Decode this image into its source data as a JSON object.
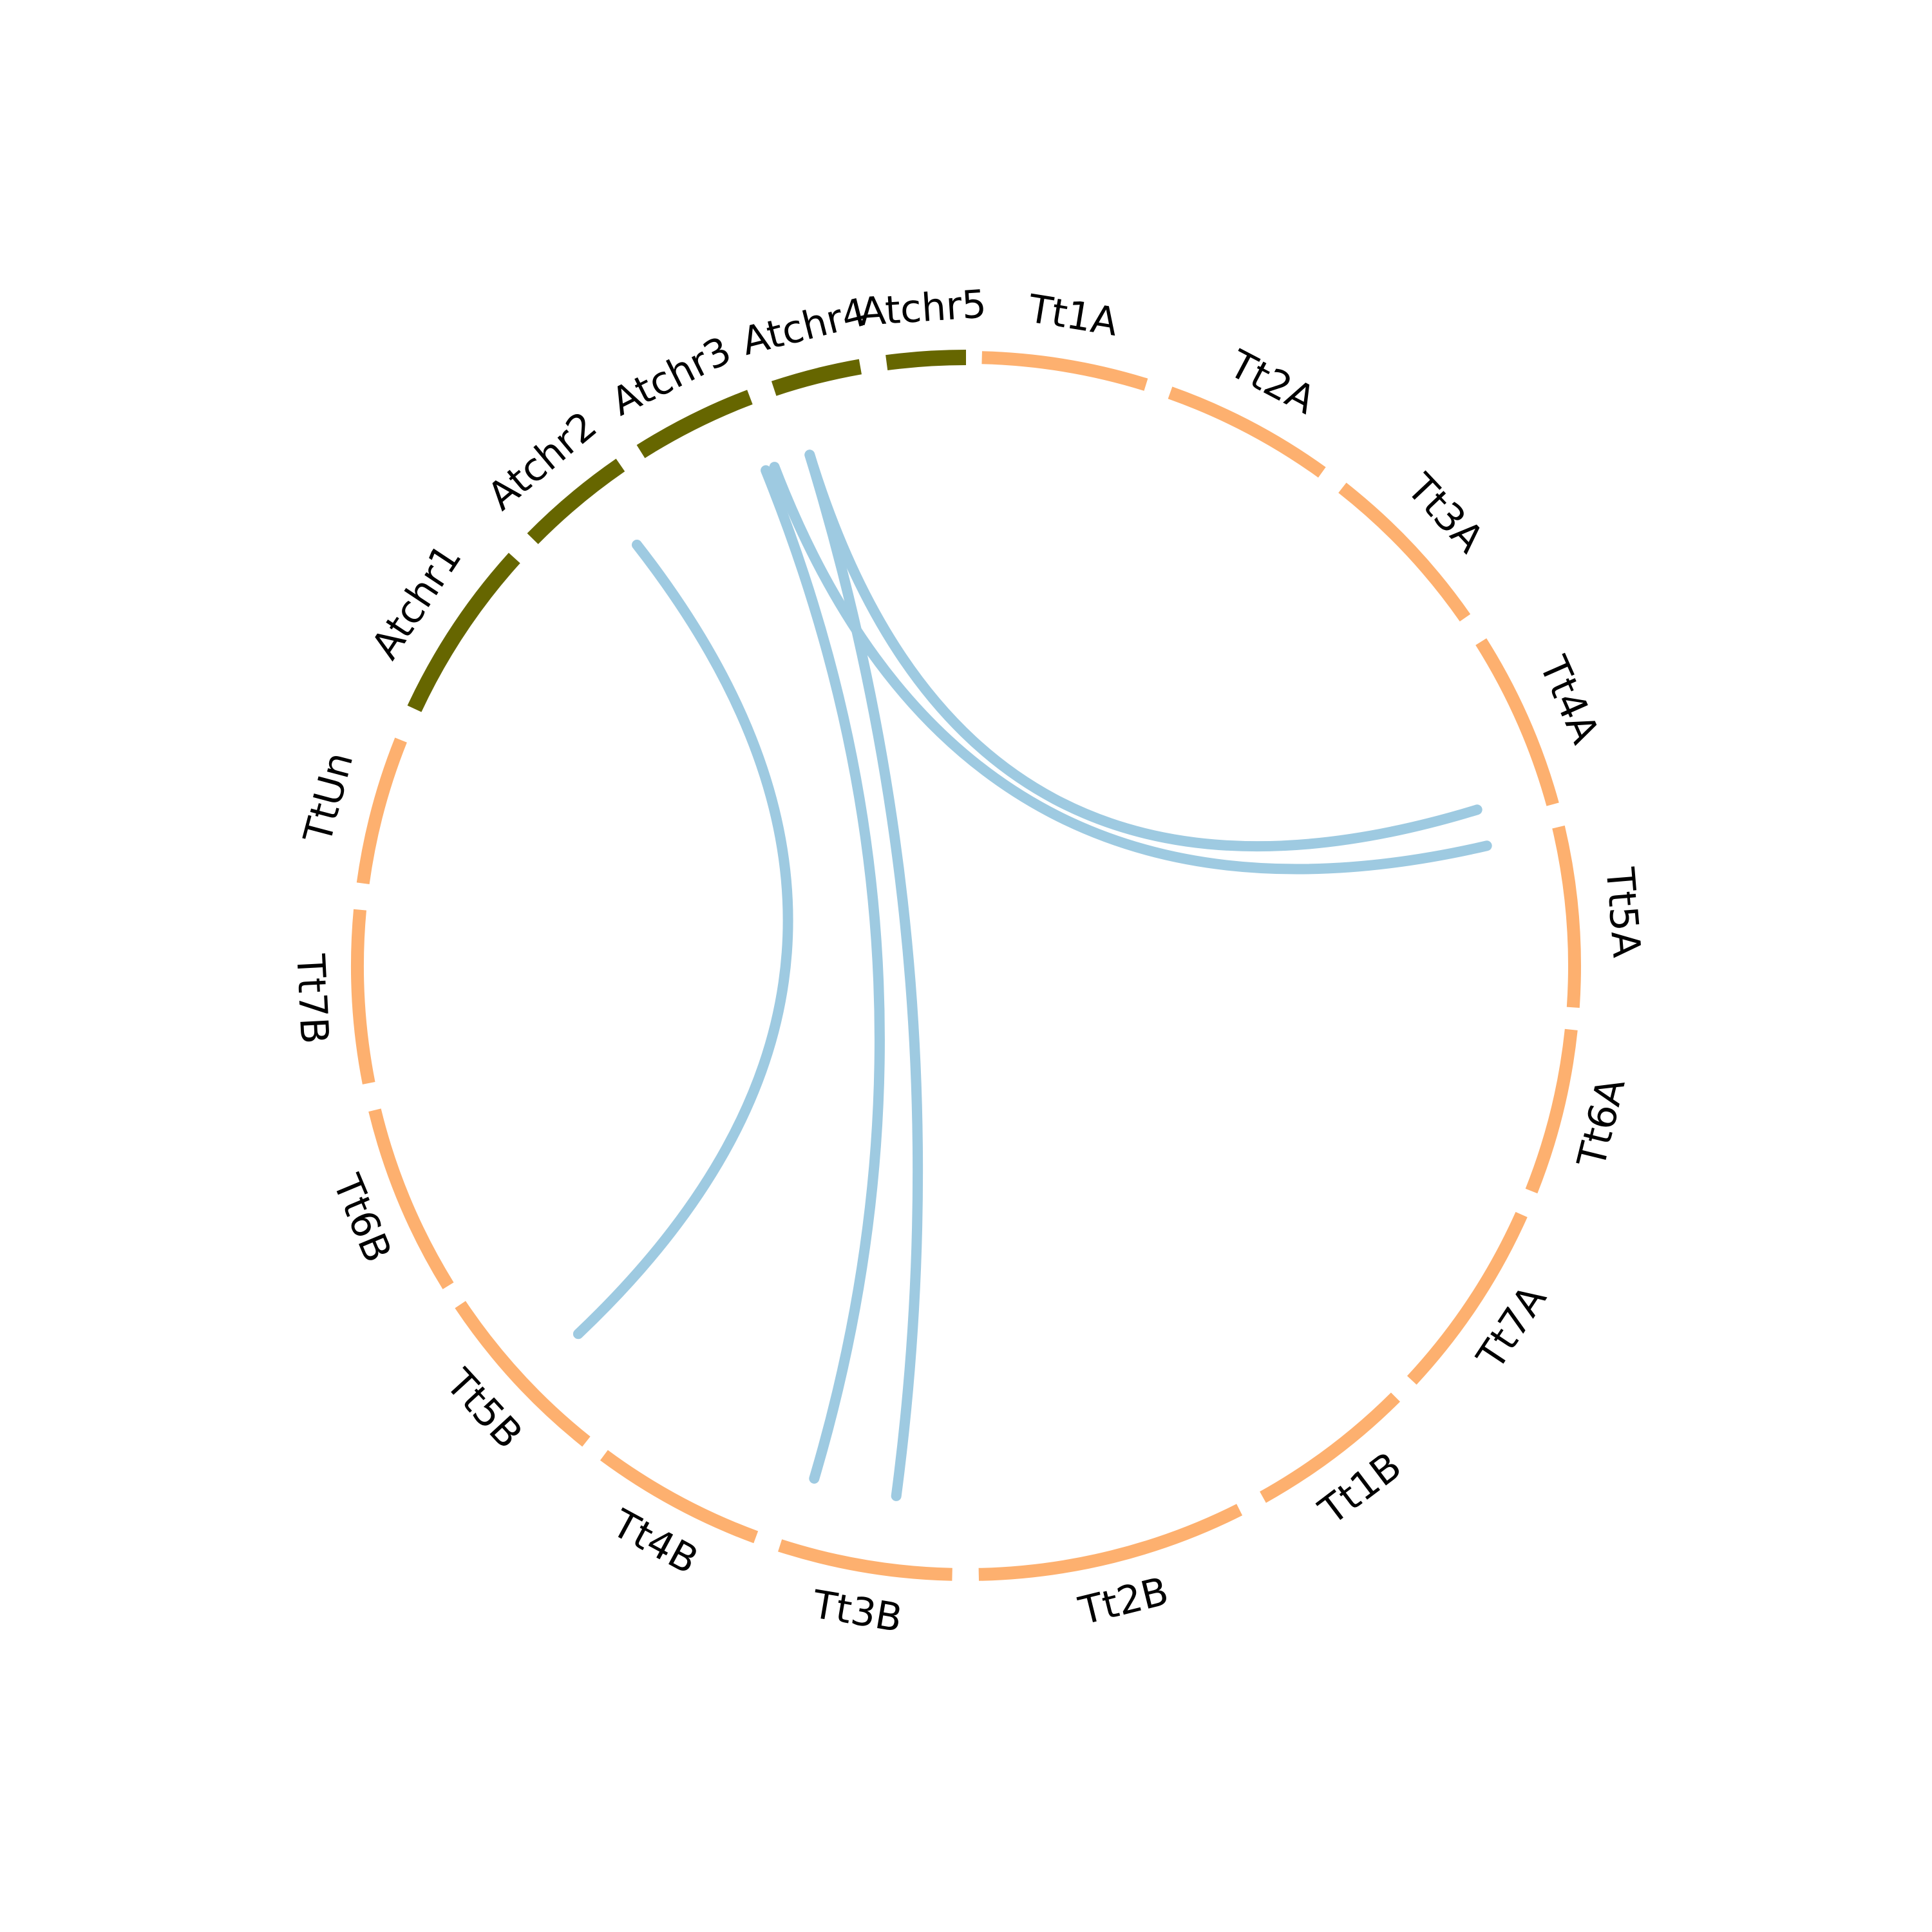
{
  "chart_data": {
    "type": "chord",
    "colors": {
      "arabidopsis": "#666600",
      "triticum": "#fdb06f",
      "links": "#9ecae1"
    },
    "chromosomes": [
      {
        "name": "Atchr1",
        "group": "arabidopsis"
      },
      {
        "name": "Atchr2",
        "group": "arabidopsis"
      },
      {
        "name": "Atchr3",
        "group": "arabidopsis"
      },
      {
        "name": "Atchr4",
        "group": "arabidopsis"
      },
      {
        "name": "Atchr5",
        "group": "arabidopsis"
      },
      {
        "name": "Tt1A",
        "group": "triticum"
      },
      {
        "name": "Tt2A",
        "group": "triticum"
      },
      {
        "name": "Tt3A",
        "group": "triticum"
      },
      {
        "name": "Tt4A",
        "group": "triticum"
      },
      {
        "name": "Tt5A",
        "group": "triticum"
      },
      {
        "name": "Tt6A",
        "group": "triticum"
      },
      {
        "name": "Tt7A",
        "group": "triticum"
      },
      {
        "name": "Tt1B",
        "group": "triticum"
      },
      {
        "name": "Tt2B",
        "group": "triticum"
      },
      {
        "name": "Tt3B",
        "group": "triticum"
      },
      {
        "name": "Tt4B",
        "group": "triticum"
      },
      {
        "name": "Tt5B",
        "group": "triticum"
      },
      {
        "name": "Tt6B",
        "group": "triticum"
      },
      {
        "name": "Tt7B",
        "group": "triticum"
      },
      {
        "name": "TtUn",
        "group": "triticum"
      }
    ],
    "links": [
      {
        "from": "Atchr2",
        "to": "Tt5B"
      },
      {
        "from": "Atchr4",
        "to": "Tt4B"
      },
      {
        "from": "Atchr4",
        "to": "Tt3B"
      },
      {
        "from": "Atchr4",
        "to": "Tt4A"
      },
      {
        "from": "Atchr4",
        "to": "Tt5A"
      }
    ]
  }
}
